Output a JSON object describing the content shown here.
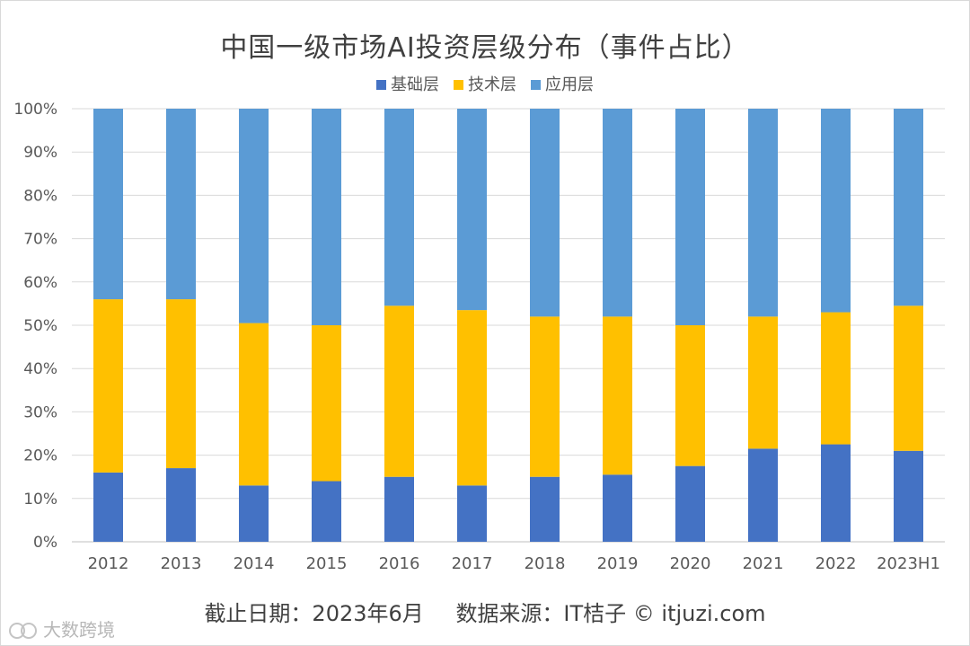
{
  "chart_data": {
    "type": "bar",
    "stacked": true,
    "title": "中国一级市场AI投资层级分布（事件占比）",
    "categories": [
      "2012",
      "2013",
      "2014",
      "2015",
      "2016",
      "2017",
      "2018",
      "2019",
      "2020",
      "2021",
      "2022",
      "2023H1"
    ],
    "series": [
      {
        "name": "基础层",
        "color": "#4472c4",
        "values": [
          16,
          17,
          13,
          14,
          15,
          13,
          15,
          15.5,
          17.5,
          21.5,
          22.5,
          21
        ]
      },
      {
        "name": "技术层",
        "color": "#ffc000",
        "values": [
          40,
          39,
          37.5,
          36,
          39.5,
          40.5,
          37,
          36.5,
          32.5,
          30.5,
          30.5,
          33.5
        ]
      },
      {
        "name": "应用层",
        "color": "#5b9bd5",
        "values": [
          44,
          44,
          49.5,
          50,
          45.5,
          46.5,
          48,
          48,
          50,
          48,
          47,
          45.5
        ]
      }
    ],
    "ylim": [
      0,
      100
    ],
    "yticks": [
      "0%",
      "10%",
      "20%",
      "30%",
      "40%",
      "50%",
      "60%",
      "70%",
      "80%",
      "90%",
      "100%"
    ],
    "xlabel": "",
    "ylabel": "",
    "grid": true,
    "legend": "top"
  },
  "footer": {
    "date": "截止日期：2023年6月",
    "source": "数据来源：IT桔子 © itjuzi.com"
  },
  "watermark": {
    "text": "大数跨境"
  }
}
